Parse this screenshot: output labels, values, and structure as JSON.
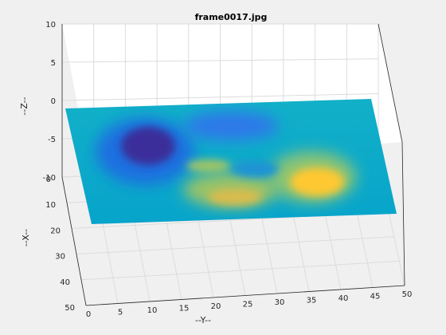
{
  "chart_data": {
    "type": "surface",
    "title": "frame0017.jpg",
    "xlabel": "--Y--",
    "ylabel": "--X--",
    "zlabel": "--Z--",
    "x_axis": {
      "name": "Y",
      "ticks": [
        0,
        5,
        10,
        15,
        20,
        25,
        30,
        35,
        40,
        45,
        50
      ],
      "range": [
        0,
        50
      ]
    },
    "y_axis": {
      "name": "X",
      "ticks": [
        0,
        10,
        20,
        30,
        40,
        50
      ],
      "range": [
        0,
        50
      ]
    },
    "z_axis": {
      "name": "Z",
      "ticks": [
        10,
        5,
        0,
        -5,
        -10
      ],
      "range": [
        -10,
        10
      ]
    },
    "grid": true,
    "colormap": "parula",
    "colors": {
      "background": "#f0f0f0",
      "axes_plane": "#ffffff",
      "grid": "#d9d9d9",
      "axis_line": "#262626",
      "colormap_stops": [
        "#352a87",
        "#0f5cdd",
        "#1481d6",
        "#06a4ca",
        "#2eb7a4",
        "#87bf77",
        "#d1bb59",
        "#fec832",
        "#f9fb0e"
      ]
    },
    "surface_features": [
      {
        "label": "trough",
        "y": 9,
        "x": 14,
        "z": -7.5
      },
      {
        "label": "trough",
        "y": 22,
        "x": 5,
        "z": -3.5
      },
      {
        "label": "peak",
        "y": 38,
        "x": 28,
        "z": 5.5
      },
      {
        "label": "peak",
        "y": 22,
        "x": 38,
        "z": 3.5
      }
    ]
  }
}
